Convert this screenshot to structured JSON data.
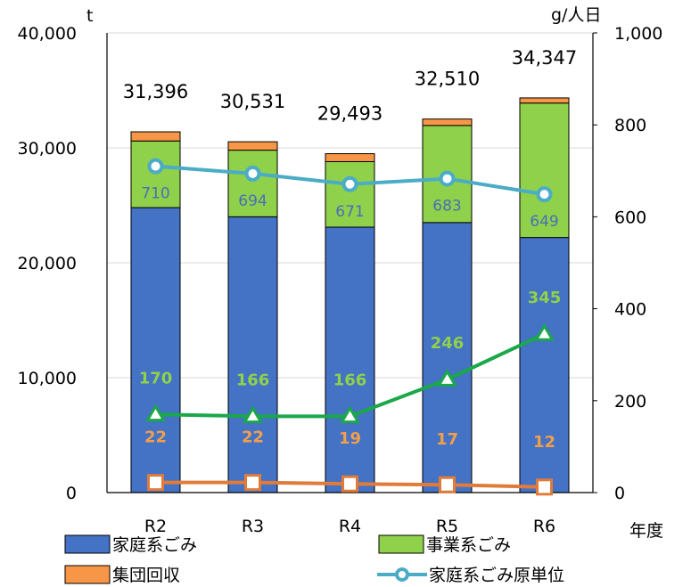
{
  "chart_data": {
    "type": "bar",
    "categories": [
      "R2",
      "R3",
      "R4",
      "R5",
      "R6"
    ],
    "xlabel": "年度",
    "ylabel_left": "t",
    "ylabel_right": "g/人日",
    "ylim_left": [
      0,
      40000
    ],
    "ylim_right": [
      0,
      1000
    ],
    "yticks_left": [
      "0",
      "10,000",
      "20,000",
      "30,000",
      "40,000"
    ],
    "yticks_right": [
      "0",
      "200",
      "400",
      "600",
      "800",
      "1,000"
    ],
    "totals": [
      "31,396",
      "30,531",
      "29,493",
      "32,510",
      "34,347"
    ],
    "bar_series": [
      {
        "name": "家庭系ごみ",
        "color": "#4472c4",
        "values": [
          24800,
          24000,
          23100,
          23500,
          22200
        ]
      },
      {
        "name": "事業系ごみ",
        "color": "#8fd14a",
        "values": [
          5800,
          5800,
          5700,
          8450,
          11700
        ]
      },
      {
        "name": "集団回収",
        "color": "#f79646",
        "values": [
          796,
          731,
          693,
          560,
          447
        ]
      }
    ],
    "line_series": [
      {
        "name": "家庭系ごみ原単位",
        "axis": "right",
        "color": "#4bacc6",
        "values": [
          710,
          694,
          671,
          683,
          649
        ],
        "labels": [
          "710",
          "694",
          "671",
          "683",
          "649"
        ]
      },
      {
        "name": "",
        "axis": "right",
        "color": "#1aa84a",
        "values": [
          170,
          166,
          166,
          246,
          345
        ],
        "labels": [
          "170",
          "166",
          "166",
          "246",
          "345"
        ]
      },
      {
        "name": "",
        "axis": "right",
        "color": "#e07b39",
        "values": [
          22,
          22,
          19,
          17,
          12
        ],
        "labels": [
          "22",
          "22",
          "19",
          "17",
          "12"
        ]
      }
    ],
    "legend": [
      "家庭系ごみ",
      "事業系ごみ",
      "集団回収",
      "家庭系ごみ原単位"
    ],
    "legend_position": "bottom",
    "grid": true
  }
}
